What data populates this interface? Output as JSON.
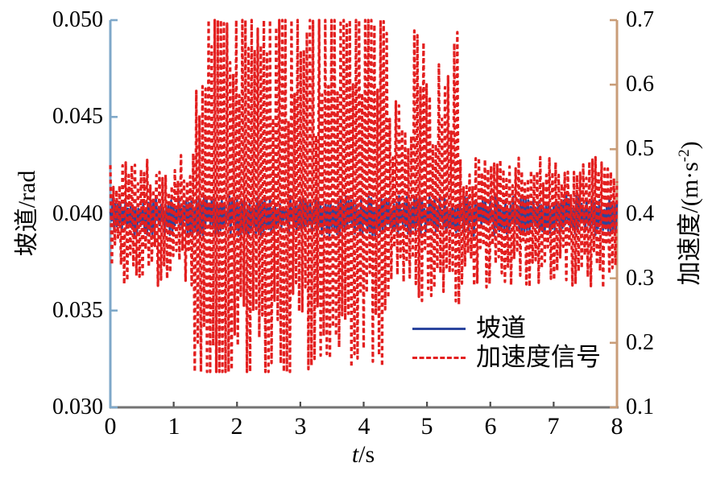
{
  "chart_data": {
    "type": "line",
    "title": "",
    "grid": false,
    "x_axis": {
      "label_italic": "t",
      "label_rest": "/s",
      "lim": [
        0,
        8
      ],
      "tick_labels": [
        "0",
        "1",
        "2",
        "3",
        "4",
        "5",
        "6",
        "7",
        "8"
      ],
      "axis_color": "#737373",
      "tick_color": "#4d4d4d"
    },
    "left_axis": {
      "label": "坡道/rad",
      "lim": [
        0.03,
        0.05
      ],
      "tick_labels": [
        "0.050",
        "0.045",
        "0.040",
        "0.035",
        "0.030"
      ],
      "axis_color": "#7fa8c9"
    },
    "right_axis": {
      "label_prefix": "加速度/(m·s",
      "label_sup": "-2",
      "label_suffix": ")",
      "lim": [
        0.1,
        0.7
      ],
      "tick_labels": [
        "0.7",
        "0.6",
        "0.5",
        "0.4",
        "0.3",
        "0.2",
        "0.1"
      ],
      "axis_color": "#c99d78"
    },
    "series": [
      {
        "name": "坡道",
        "axis": "left",
        "color": "#2b459e",
        "style": "solid",
        "baseline": 0.0399,
        "noise_amplitude": 0.001,
        "samples": 400,
        "seed": 7
      },
      {
        "name": "加速度信号",
        "axis": "right",
        "color": "#e31f1f",
        "style": "dashed",
        "baseline": 0.4,
        "clip": [
          0.155,
          0.7
        ],
        "envelope_segments": [
          {
            "t0": 0.0,
            "t1": 1.32,
            "up": 0.085,
            "down": 0.105
          },
          {
            "t0": 1.32,
            "t1": 3.05,
            "up": 0.34,
            "down": 0.26
          },
          {
            "t0": 3.05,
            "t1": 4.4,
            "up": 0.33,
            "down": 0.22
          },
          {
            "t0": 4.4,
            "t1": 4.78,
            "up": 0.16,
            "down": 0.11
          },
          {
            "t0": 4.78,
            "t1": 5.52,
            "up": 0.26,
            "down": 0.13
          },
          {
            "t0": 5.52,
            "t1": 8.01,
            "up": 0.08,
            "down": 0.105
          }
        ],
        "samples": 330,
        "seed": 13
      }
    ],
    "legend": {
      "position": "lower-right",
      "entries": [
        {
          "label": "坡道",
          "color": "#2b459e",
          "style": "solid"
        },
        {
          "label": "加速度信号",
          "color": "#e31f1f",
          "style": "dashed"
        }
      ]
    }
  },
  "colors": {
    "background": "#ffffff",
    "text": "#000000"
  }
}
